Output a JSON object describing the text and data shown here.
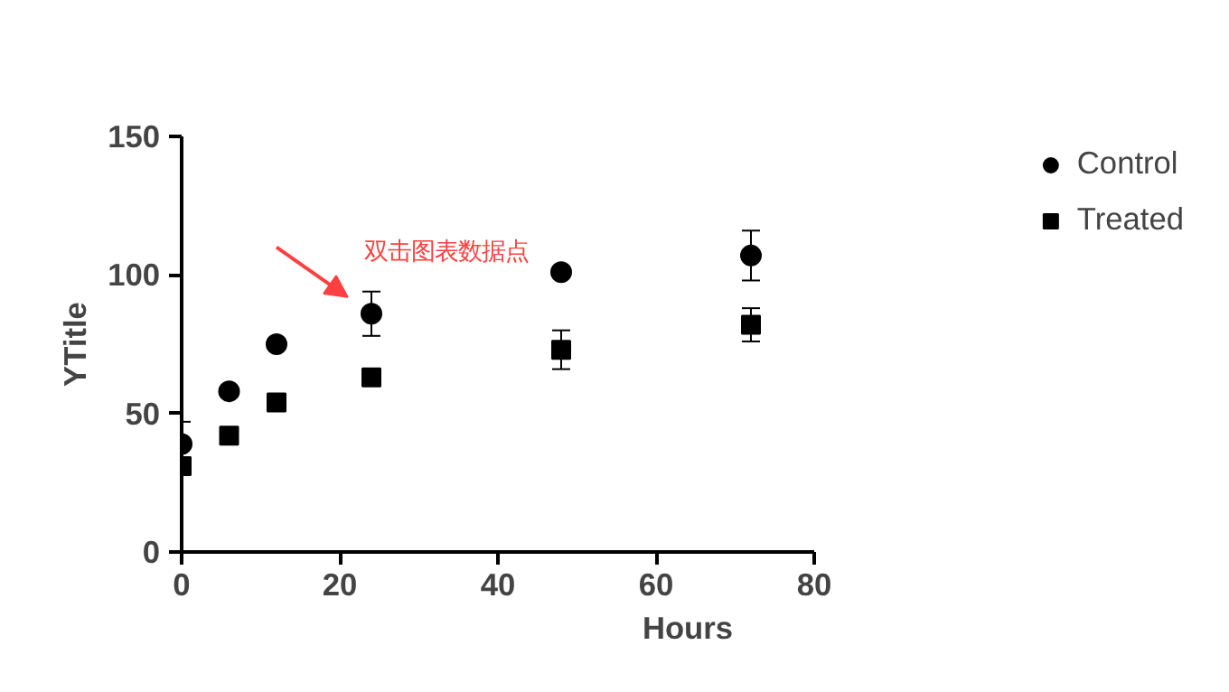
{
  "chart_data": {
    "type": "scatter",
    "xlabel": "Hours",
    "ylabel": "YTitle",
    "x": [
      0,
      6,
      12,
      24,
      48,
      72
    ],
    "series": [
      {
        "name": "Control",
        "color": "#000000",
        "marker": "circle",
        "values": [
          39,
          58,
          75,
          86,
          101,
          107
        ],
        "errors": [
          8,
          null,
          null,
          8,
          null,
          9
        ]
      },
      {
        "name": "Treated",
        "color": "#000000",
        "marker": "square",
        "values": [
          31,
          42,
          54,
          63,
          73,
          82
        ],
        "errors": [
          null,
          null,
          null,
          null,
          7,
          6
        ]
      }
    ],
    "xlim": [
      0,
      80
    ],
    "xticks": [
      0,
      20,
      40,
      60,
      80
    ],
    "ylim": [
      0,
      150
    ],
    "yticks": [
      0,
      50,
      100,
      150
    ],
    "grid": false,
    "legend": "top right",
    "annotations": [
      {
        "text": "双击图表数据点",
        "x": 24,
        "y": 86
      }
    ]
  }
}
